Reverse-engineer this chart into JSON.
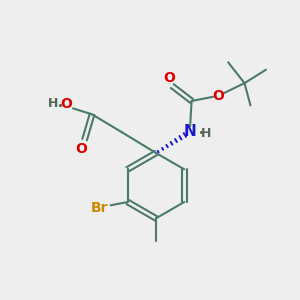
{
  "background_color": "#eeeeee",
  "bond_color": "#4a7a6a",
  "bond_width": 1.5,
  "red_color": "#dd0000",
  "blue_color": "#1a1acc",
  "orange_color": "#cc8800",
  "gray_color": "#556655",
  "figsize": [
    3.0,
    3.0
  ],
  "dpi": 100,
  "xlim": [
    0,
    10
  ],
  "ylim": [
    0,
    10
  ]
}
